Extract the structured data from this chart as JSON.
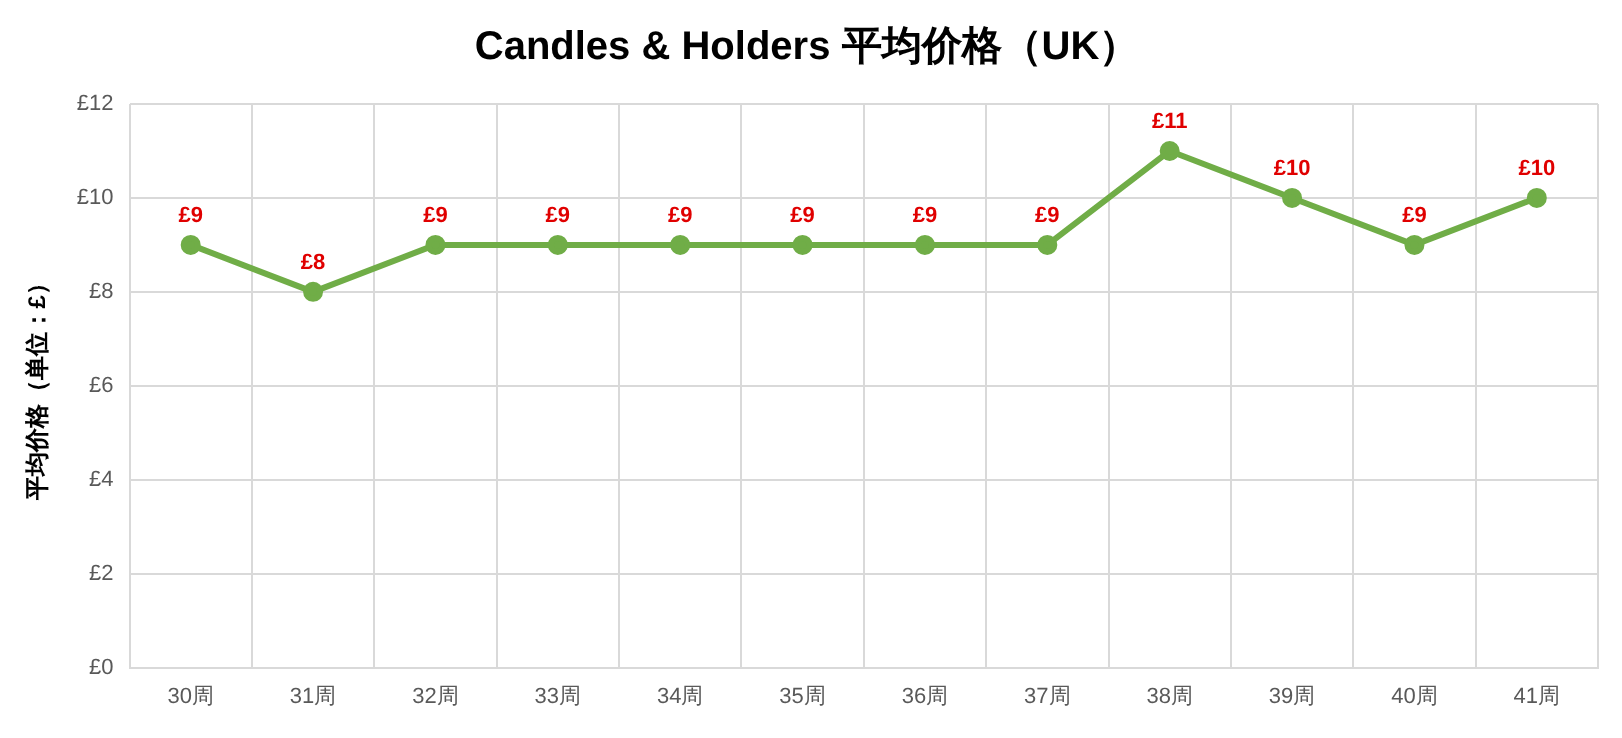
{
  "chart_data": {
    "type": "line",
    "title": "Candles & Holders 平均价格（UK）",
    "ylabel": "平均价格（单位：£）",
    "categories": [
      "30周",
      "31周",
      "32周",
      "33周",
      "34周",
      "35周",
      "36周",
      "37周",
      "38周",
      "39周",
      "40周",
      "41周"
    ],
    "series": [
      {
        "color": "#70ad47",
        "values": [
          9,
          8,
          9,
          9,
          9,
          9,
          9,
          9,
          11,
          10,
          9,
          10
        ],
        "value_labels": [
          "£9",
          "£8",
          "£9",
          "£9",
          "£9",
          "£9",
          "£9",
          "£9",
          "£11",
          "£10",
          "£9",
          "£10"
        ]
      }
    ],
    "ylim": [
      0,
      12
    ],
    "yticks": [
      {
        "value": 0,
        "label": "£0"
      },
      {
        "value": 2,
        "label": "£2"
      },
      {
        "value": 4,
        "label": "£4"
      },
      {
        "value": 6,
        "label": "£6"
      },
      {
        "value": 8,
        "label": "£8"
      },
      {
        "value": 10,
        "label": "£10"
      },
      {
        "value": 12,
        "label": "£12"
      }
    ],
    "grid": true,
    "legend": false,
    "marker": "circle",
    "line_style": "solid"
  }
}
